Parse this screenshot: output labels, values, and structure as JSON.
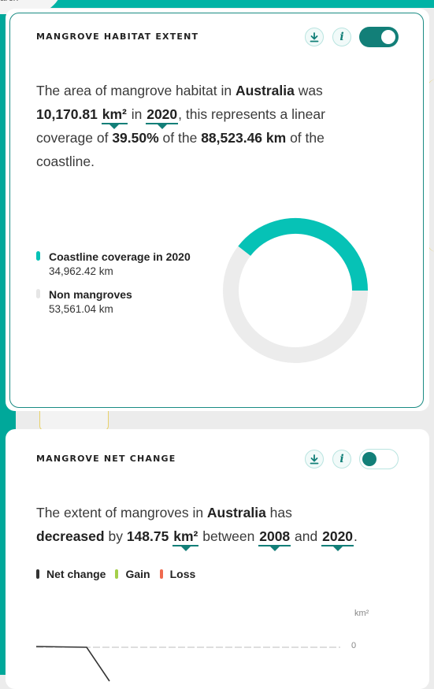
{
  "background": {
    "search_fragment": "arch"
  },
  "habitat_card": {
    "title": "MANGROVE HABITAT EXTENT",
    "download_icon": "download-icon",
    "info_icon": "info-icon",
    "info_glyph": "i",
    "toggle_state": "on",
    "text": {
      "p1": "The area of mangrove habitat in ",
      "location": "Australia",
      "p2": " was",
      "area_value": "10,170.81",
      "unit": "km²",
      "p3": " in ",
      "year": "2020",
      "p4": ", this represents a linear coverage of ",
      "coverage_pct": "39.50%",
      "p5": " of the ",
      "coastline_length": "88,523.46 km",
      "p6": " of the coastline."
    },
    "chart_data": {
      "type": "pie",
      "style": "donut",
      "series": [
        {
          "name": "Coastline coverage in 2020",
          "label": "34,962.42 km",
          "value": 34962.42,
          "color": "#06c2b6"
        },
        {
          "name": "Non mangroves",
          "label": "53,561.04 km",
          "value": 53561.04,
          "color": "#ececec"
        }
      ],
      "legend_position": "left"
    }
  },
  "net_change_card": {
    "title": "MANGROVE NET CHANGE",
    "download_icon": "download-icon",
    "info_icon": "info-icon",
    "info_glyph": "i",
    "toggle_state": "off",
    "text": {
      "p1": "The extent of mangroves in ",
      "location": "Australia",
      "p2": "  has ",
      "direction": "decreased",
      "p3": " by ",
      "amount": "148.75",
      "unit": "km²",
      "p4": " between ",
      "start_year": "2008",
      "p5": " and ",
      "end_year": "2020",
      "p6": "."
    },
    "chart_data": {
      "type": "line",
      "legend": [
        {
          "name": "Net change",
          "color": "#333333"
        },
        {
          "name": "Gain",
          "color": "#a4cf4a"
        },
        {
          "name": "Loss",
          "color": "#ef6a4f"
        }
      ],
      "y_unit": "km²",
      "y_ticks": [
        "0"
      ],
      "grid": true
    }
  }
}
